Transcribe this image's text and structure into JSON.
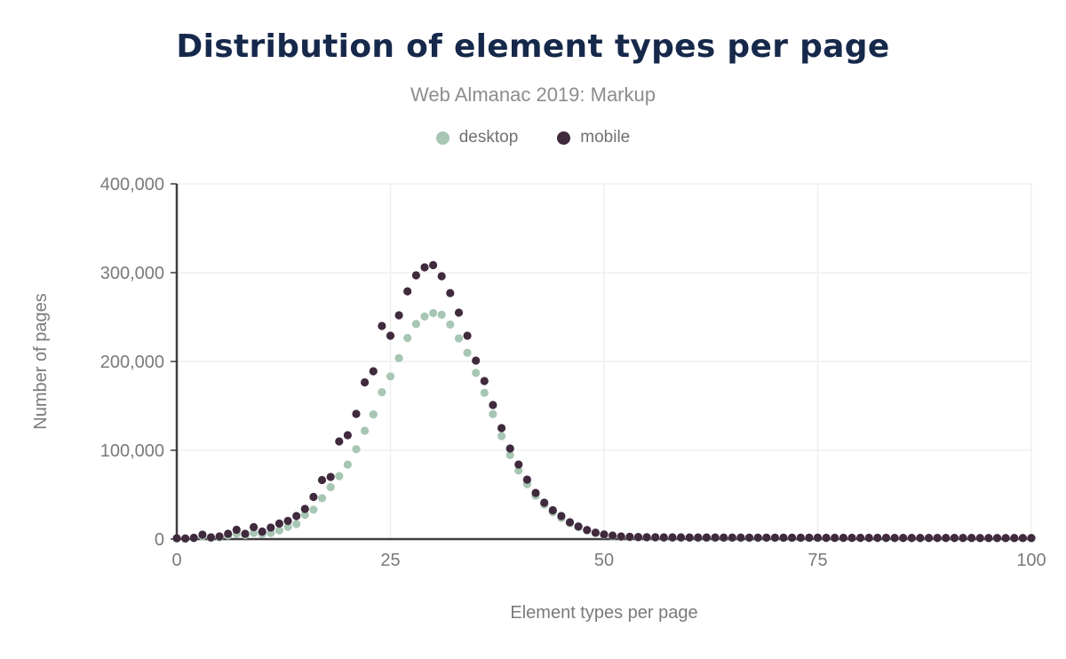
{
  "header": {
    "title": "Distribution of element types per page",
    "subtitle": "Web Almanac 2019: Markup"
  },
  "legend": [
    {
      "label": "desktop",
      "color": "#a7c6b4"
    },
    {
      "label": "mobile",
      "color": "#402a3e"
    }
  ],
  "colors": {
    "title": "#16294b",
    "subtitle": "#8d8d8d",
    "axis_line": "#413c42",
    "gridline": "#efefef",
    "tick_text": "#7a7a7a",
    "desktop": "#a7c6b4",
    "mobile": "#402a3e"
  },
  "chart_data": {
    "type": "scatter",
    "title": "Distribution of element types per page",
    "subtitle": "Web Almanac 2019: Markup",
    "xlabel": "Element types per page",
    "ylabel": "Number of pages",
    "xlim": [
      0,
      100
    ],
    "ylim": [
      0,
      400000
    ],
    "x_ticks": [
      0,
      25,
      50,
      75,
      100
    ],
    "y_ticks": [
      0,
      100000,
      200000,
      300000,
      400000
    ],
    "grid": true,
    "legend_position": "top",
    "x": [
      0,
      1,
      2,
      3,
      4,
      5,
      6,
      7,
      8,
      9,
      10,
      11,
      12,
      13,
      14,
      15,
      16,
      17,
      18,
      19,
      20,
      21,
      22,
      23,
      24,
      25,
      26,
      27,
      28,
      29,
      30,
      31,
      32,
      33,
      34,
      35,
      36,
      37,
      38,
      39,
      40,
      41,
      42,
      43,
      44,
      45,
      46,
      47,
      48,
      49,
      50,
      51,
      52,
      53,
      54,
      55,
      56,
      57,
      58,
      59,
      60,
      61,
      62,
      63,
      64,
      65,
      66,
      67,
      68,
      69,
      70,
      71,
      72,
      73,
      74,
      75,
      76,
      77,
      78,
      79,
      80,
      81,
      82,
      83,
      84,
      85,
      86,
      87,
      88,
      89,
      90,
      91,
      92,
      93,
      94,
      95,
      96,
      97,
      98,
      99,
      100
    ],
    "series": [
      {
        "name": "desktop",
        "color": "#a7c6b4",
        "values": [
          800,
          500,
          1000,
          3000,
          1200,
          2000,
          4000,
          6000,
          4500,
          7000,
          5700,
          7000,
          9700,
          13700,
          17000,
          27400,
          33100,
          46100,
          58500,
          70900,
          83900,
          101300,
          122000,
          140400,
          165400,
          183200,
          203800,
          226500,
          242300,
          250600,
          254500,
          252600,
          241600,
          226000,
          209800,
          187100,
          164700,
          140700,
          116000,
          94600,
          77200,
          61900,
          48800,
          38800,
          30400,
          23800,
          18000,
          13300,
          9700,
          6700,
          4700,
          3200,
          2400,
          2000,
          1800,
          1600,
          1500,
          1450,
          1400,
          1380,
          1360,
          1340,
          1320,
          1300,
          1280,
          1260,
          1240,
          1220,
          1200,
          1190,
          1180,
          1170,
          1160,
          1150,
          1140,
          1130,
          1120,
          1110,
          1100,
          1090,
          1080,
          1070,
          1060,
          1050,
          1040,
          1030,
          1020,
          1010,
          1000,
          990,
          980,
          970,
          960,
          950,
          940,
          930,
          920,
          910,
          900,
          890,
          880
        ]
      },
      {
        "name": "mobile",
        "color": "#402a3e",
        "values": [
          1000,
          800,
          1500,
          5000,
          2000,
          3000,
          6000,
          10500,
          6000,
          13500,
          8500,
          13000,
          17500,
          20500,
          26000,
          34000,
          47500,
          66500,
          70000,
          110000,
          117000,
          141000,
          176500,
          189000,
          240000,
          229000,
          252000,
          279000,
          297000,
          306000,
          308500,
          296000,
          277000,
          255000,
          229000,
          201000,
          178000,
          151000,
          125000,
          102000,
          84000,
          67000,
          52000,
          41000,
          32500,
          26000,
          19000,
          14300,
          10300,
          7300,
          5300,
          4000,
          3000,
          2600,
          2400,
          2200,
          2100,
          2050,
          2000,
          1970,
          1940,
          1910,
          1880,
          1850,
          1820,
          1790,
          1760,
          1730,
          1700,
          1680,
          1660,
          1640,
          1620,
          1600,
          1580,
          1560,
          1540,
          1520,
          1500,
          1490,
          1480,
          1470,
          1460,
          1450,
          1440,
          1430,
          1420,
          1410,
          1400,
          1390,
          1380,
          1370,
          1360,
          1350,
          1340,
          1330,
          1320,
          1310,
          1300,
          1290,
          1280
        ]
      }
    ]
  }
}
